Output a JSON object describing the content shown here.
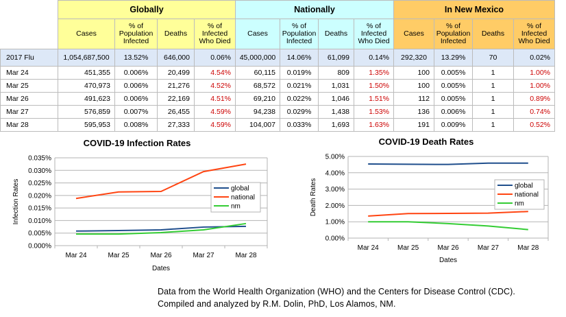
{
  "table": {
    "groups": [
      "Globally",
      "Nationally",
      "In New Mexico"
    ],
    "subheaders": [
      "Cases",
      "% of Population Infected",
      "Deaths",
      "% of Infected Who Died"
    ],
    "flu": {
      "label": "2017 Flu",
      "cells": [
        "1,054,687,500",
        "13.52%",
        "646,000",
        "0.06%",
        "45,000,000",
        "14.06%",
        "61,099",
        "0.14%",
        "292,320",
        "13.29%",
        "70",
        "0.02%"
      ]
    },
    "rows": [
      {
        "label": "Mar 24",
        "cells": [
          "451,355",
          "0.006%",
          "20,499",
          "4.54%",
          "60,115",
          "0.019%",
          "809",
          "1.35%",
          "100",
          "0.005%",
          "1",
          "1.00%"
        ]
      },
      {
        "label": "Mar 25",
        "cells": [
          "470,973",
          "0.006%",
          "21,276",
          "4.52%",
          "68,572",
          "0.021%",
          "1,031",
          "1.50%",
          "100",
          "0.005%",
          "1",
          "1.00%"
        ]
      },
      {
        "label": "Mar 26",
        "cells": [
          "491,623",
          "0.006%",
          "22,169",
          "4.51%",
          "69,210",
          "0.022%",
          "1,046",
          "1.51%",
          "112",
          "0.005%",
          "1",
          "0.89%"
        ]
      },
      {
        "label": "Mar 27",
        "cells": [
          "576,859",
          "0.007%",
          "26,455",
          "4.59%",
          "94,238",
          "0.029%",
          "1,438",
          "1.53%",
          "136",
          "0.006%",
          "1",
          "0.74%"
        ]
      },
      {
        "label": "Mar 28",
        "cells": [
          "595,953",
          "0.008%",
          "27,333",
          "4.59%",
          "104,007",
          "0.033%",
          "1,693",
          "1.63%",
          "191",
          "0.009%",
          "1",
          "0.52%"
        ]
      }
    ]
  },
  "chart_data": [
    {
      "type": "line",
      "title": "COVID-19 Infection Rates",
      "xlabel": "Dates",
      "ylabel": "Infection Rates",
      "categories": [
        "Mar 24",
        "Mar 25",
        "Mar 26",
        "Mar 27",
        "Mar 28"
      ],
      "ylim": [
        0,
        0.035
      ],
      "yticks": [
        "0.000%",
        "0.005%",
        "0.010%",
        "0.015%",
        "0.020%",
        "0.025%",
        "0.030%",
        "0.035%"
      ],
      "legend": "right",
      "grid": true,
      "series": [
        {
          "name": "global",
          "color": "#1f4e8c",
          "values": [
            0.0058,
            0.006,
            0.0063,
            0.0074,
            0.0077
          ]
        },
        {
          "name": "national",
          "color": "#ff4411",
          "values": [
            0.0188,
            0.0214,
            0.0216,
            0.0295,
            0.0325
          ]
        },
        {
          "name": "nm",
          "color": "#33cc33",
          "values": [
            0.0046,
            0.0046,
            0.0052,
            0.0063,
            0.0088
          ]
        }
      ]
    },
    {
      "type": "line",
      "title": "COVID-19 Death Rates",
      "xlabel": "Dates",
      "ylabel": "Death Rates",
      "categories": [
        "Mar 24",
        "Mar 25",
        "Mar 26",
        "Mar 27",
        "Mar 28"
      ],
      "ylim": [
        0,
        5
      ],
      "yticks": [
        "0.00%",
        "1.00%",
        "2.00%",
        "3.00%",
        "4.00%",
        "5.00%"
      ],
      "legend": "right",
      "grid": true,
      "series": [
        {
          "name": "global",
          "color": "#1f4e8c",
          "values": [
            4.54,
            4.52,
            4.51,
            4.59,
            4.59
          ]
        },
        {
          "name": "national",
          "color": "#ff4411",
          "values": [
            1.35,
            1.5,
            1.51,
            1.53,
            1.63
          ]
        },
        {
          "name": "nm",
          "color": "#33cc33",
          "values": [
            1.0,
            1.0,
            0.89,
            0.74,
            0.52
          ]
        }
      ]
    }
  ],
  "footer": {
    "line1": "Data from the World Health Organization (WHO) and the Centers for Disease Control (CDC).",
    "line2": "Compiled and analyzed by R.M. Dolin, PhD, Los Alamos, NM."
  }
}
